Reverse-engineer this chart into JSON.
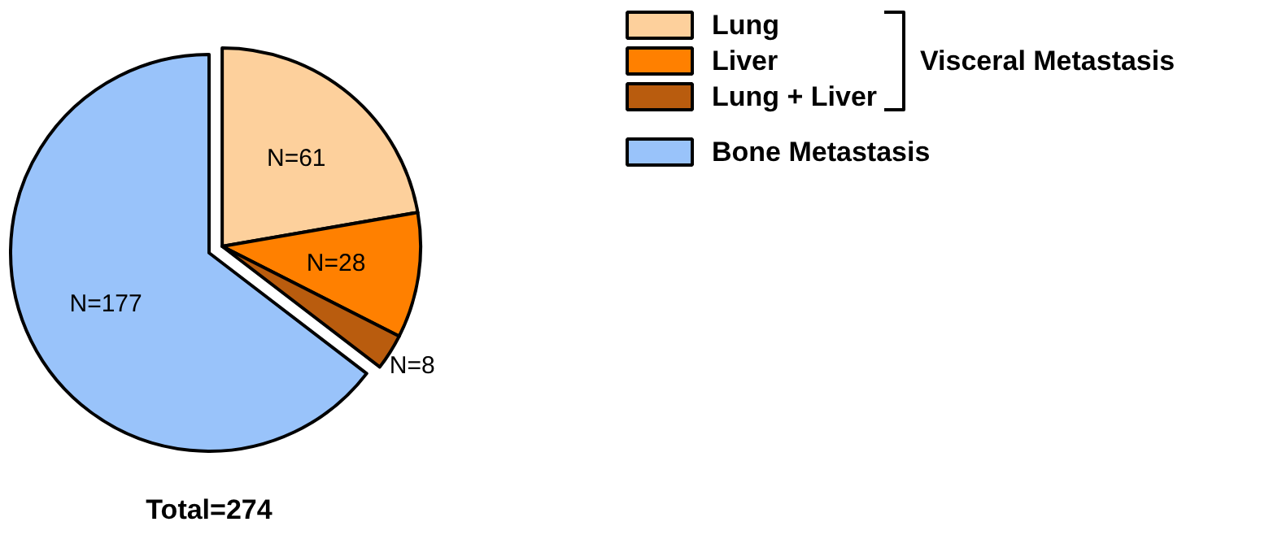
{
  "chart_data": {
    "type": "pie",
    "categories": [
      "Lung",
      "Liver",
      "Lung + Liver",
      "Bone Metastasis"
    ],
    "values": [
      61,
      28,
      8,
      177
    ],
    "colors": [
      "#fdd09c",
      "#ff8000",
      "#b95c0e",
      "#99c3fa"
    ],
    "value_labels": [
      "N=61",
      "N=28",
      "N=8",
      "N=177"
    ],
    "xlabel": "Total=274",
    "annotations": [
      "Visceral Metastasis"
    ],
    "legend": "right"
  }
}
